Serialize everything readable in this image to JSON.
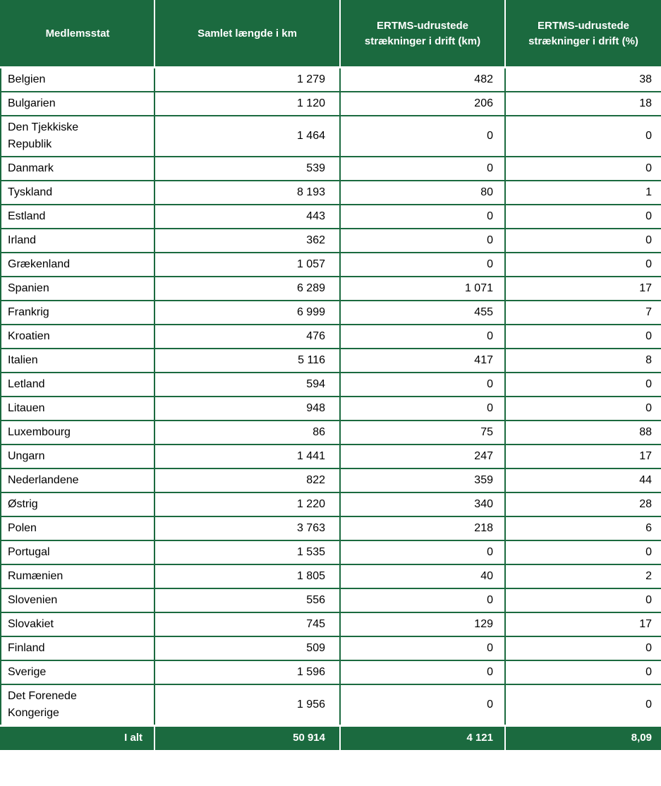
{
  "colors": {
    "green": "#1B6A3F",
    "header_text": "#FFFFFF",
    "body_text": "#000000"
  },
  "table": {
    "columns": [
      "Medlemsstat",
      "Samlet længde i km",
      "ERTMS-udrustede strækninger i drift (km)",
      "ERTMS-udrustede strækninger i drift (%)"
    ],
    "rows": [
      {
        "name": "Belgien",
        "total_km": "1 279",
        "ertms_km": "482",
        "ertms_pct": "38"
      },
      {
        "name": "Bulgarien",
        "total_km": "1 120",
        "ertms_km": "206",
        "ertms_pct": "18"
      },
      {
        "name": "Den Tjekkiske\nRepublik",
        "total_km": "1 464",
        "ertms_km": "0",
        "ertms_pct": "0"
      },
      {
        "name": "Danmark",
        "total_km": "539",
        "ertms_km": "0",
        "ertms_pct": "0"
      },
      {
        "name": "Tyskland",
        "total_km": "8 193",
        "ertms_km": "80",
        "ertms_pct": "1"
      },
      {
        "name": "Estland",
        "total_km": "443",
        "ertms_km": "0",
        "ertms_pct": "0"
      },
      {
        "name": "Irland",
        "total_km": "362",
        "ertms_km": "0",
        "ertms_pct": "0"
      },
      {
        "name": "Grækenland",
        "total_km": "1 057",
        "ertms_km": "0",
        "ertms_pct": "0"
      },
      {
        "name": "Spanien",
        "total_km": "6 289",
        "ertms_km": "1 071",
        "ertms_pct": "17"
      },
      {
        "name": "Frankrig",
        "total_km": "6 999",
        "ertms_km": "455",
        "ertms_pct": "7"
      },
      {
        "name": "Kroatien",
        "total_km": "476",
        "ertms_km": "0",
        "ertms_pct": "0"
      },
      {
        "name": "Italien",
        "total_km": "5 116",
        "ertms_km": "417",
        "ertms_pct": "8"
      },
      {
        "name": "Letland",
        "total_km": "594",
        "ertms_km": "0",
        "ertms_pct": "0"
      },
      {
        "name": "Litauen",
        "total_km": "948",
        "ertms_km": "0",
        "ertms_pct": "0"
      },
      {
        "name": "Luxembourg",
        "total_km": "86",
        "ertms_km": "75",
        "ertms_pct": "88"
      },
      {
        "name": "Ungarn",
        "total_km": "1 441",
        "ertms_km": "247",
        "ertms_pct": "17"
      },
      {
        "name": "Nederlandene",
        "total_km": "822",
        "ertms_km": "359",
        "ertms_pct": "44"
      },
      {
        "name": "Østrig",
        "total_km": "1 220",
        "ertms_km": "340",
        "ertms_pct": "28"
      },
      {
        "name": "Polen",
        "total_km": "3 763",
        "ertms_km": "218",
        "ertms_pct": "6"
      },
      {
        "name": "Portugal",
        "total_km": "1 535",
        "ertms_km": "0",
        "ertms_pct": "0"
      },
      {
        "name": "Rumænien",
        "total_km": "1 805",
        "ertms_km": "40",
        "ertms_pct": "2"
      },
      {
        "name": "Slovenien",
        "total_km": "556",
        "ertms_km": "0",
        "ertms_pct": "0"
      },
      {
        "name": "Slovakiet",
        "total_km": "745",
        "ertms_km": "129",
        "ertms_pct": "17"
      },
      {
        "name": "Finland",
        "total_km": "509",
        "ertms_km": "0",
        "ertms_pct": "0"
      },
      {
        "name": "Sverige",
        "total_km": "1 596",
        "ertms_km": "0",
        "ertms_pct": "0"
      },
      {
        "name": "Det Forenede\nKongerige",
        "total_km": "1 956",
        "ertms_km": "0",
        "ertms_pct": "0"
      }
    ],
    "footer": {
      "label": "I alt",
      "total_km": "50 914",
      "ertms_km": "4 121",
      "ertms_pct": "8,09"
    }
  }
}
